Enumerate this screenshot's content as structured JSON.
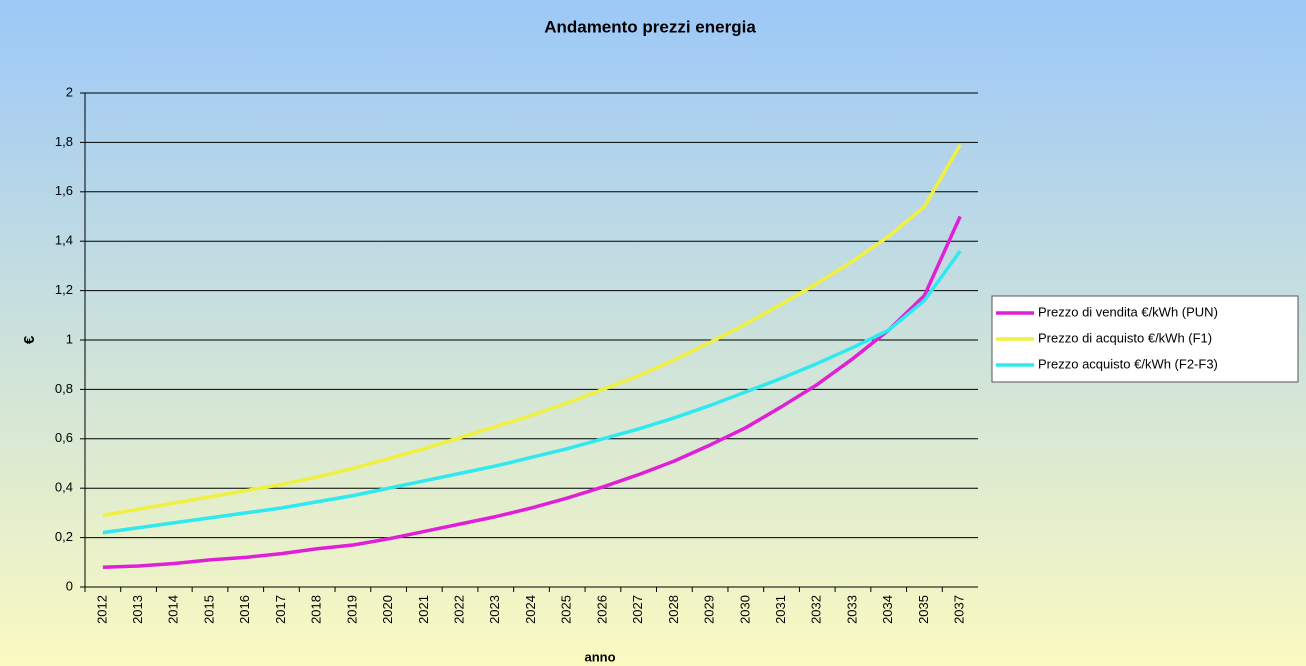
{
  "chart_data": {
    "type": "line",
    "title": "Andamento prezzi energia",
    "x_label": "anno",
    "y_label": "€",
    "categories": [
      "2012",
      "2013",
      "2014",
      "2015",
      "2016",
      "2017",
      "2018",
      "2019",
      "2020",
      "2021",
      "2022",
      "2023",
      "2024",
      "2025",
      "2026",
      "2027",
      "2028",
      "2029",
      "2030",
      "2031",
      "2032",
      "2033",
      "2034",
      "2035",
      "2037"
    ],
    "series": [
      {
        "name": "Prezzo di vendita €/kWh (PUN)",
        "color": "#e020d8",
        "values": [
          0.08,
          0.085,
          0.095,
          0.11,
          0.12,
          0.135,
          0.155,
          0.17,
          0.195,
          0.225,
          0.255,
          0.285,
          0.32,
          0.36,
          0.405,
          0.455,
          0.51,
          0.575,
          0.645,
          0.73,
          0.82,
          0.925,
          1.04,
          1.18,
          1.5
        ]
      },
      {
        "name": "Prezzo di acquisto €/kWh (F1)",
        "color": "#f0f040",
        "values": [
          0.29,
          0.315,
          0.34,
          0.365,
          0.39,
          0.415,
          0.445,
          0.48,
          0.52,
          0.56,
          0.605,
          0.65,
          0.695,
          0.745,
          0.8,
          0.855,
          0.92,
          0.99,
          1.065,
          1.145,
          1.23,
          1.32,
          1.42,
          1.54,
          1.79
        ]
      },
      {
        "name": "Prezzo acquisto €/kWh (F2-F3)",
        "color": "#30e8f0",
        "values": [
          0.22,
          0.24,
          0.26,
          0.28,
          0.3,
          0.32,
          0.345,
          0.37,
          0.4,
          0.43,
          0.46,
          0.49,
          0.525,
          0.56,
          0.6,
          0.64,
          0.685,
          0.735,
          0.79,
          0.845,
          0.905,
          0.97,
          1.04,
          1.16,
          1.36
        ]
      }
    ],
    "ylim": [
      0,
      2
    ],
    "yticks": [
      0,
      {
        "value": 0.2,
        "label": "0,2"
      },
      {
        "value": 0.4,
        "label": "0,4"
      },
      {
        "value": 0.6,
        "label": "0,6"
      },
      {
        "value": 0.8,
        "label": "0,8"
      },
      1,
      {
        "value": 1.2,
        "label": "1,2"
      },
      {
        "value": 1.4,
        "label": "1,4"
      },
      {
        "value": 1.6,
        "label": "1,6"
      },
      {
        "value": 1.8,
        "label": "1,8"
      },
      2
    ],
    "grid": true,
    "legend": "right"
  }
}
